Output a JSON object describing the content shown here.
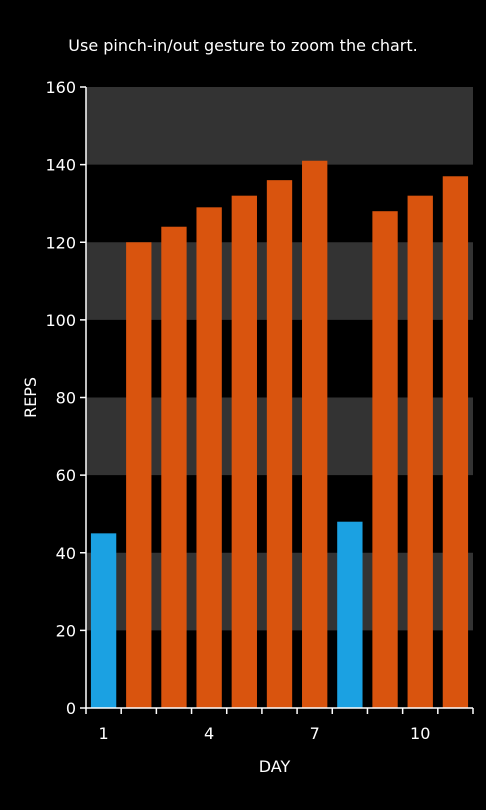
{
  "hint_text": "Use pinch-in/out gesture to zoom the chart.",
  "chart_data": {
    "type": "bar",
    "x": [
      1,
      2,
      3,
      4,
      5,
      6,
      7,
      8,
      9,
      10,
      11
    ],
    "values": [
      45,
      120,
      124,
      129,
      132,
      136,
      141,
      48,
      128,
      132,
      137
    ],
    "colors": [
      "#1BA1E2",
      "#D9540E",
      "#D9540E",
      "#D9540E",
      "#D9540E",
      "#D9540E",
      "#D9540E",
      "#1BA1E2",
      "#D9540E",
      "#D9540E",
      "#D9540E"
    ],
    "xlabel": "DAY",
    "ylabel": "REPS",
    "ylim": [
      0,
      160
    ],
    "yticks": [
      "0",
      "20",
      "40",
      "60",
      "80",
      "100",
      "120",
      "140",
      "160"
    ],
    "xtick_labels": [
      "1",
      "4",
      "7",
      "10"
    ],
    "xtick_positions": [
      1,
      4,
      7,
      10
    ],
    "band_color": "#333333",
    "axis_color": "#FFFFFF"
  }
}
